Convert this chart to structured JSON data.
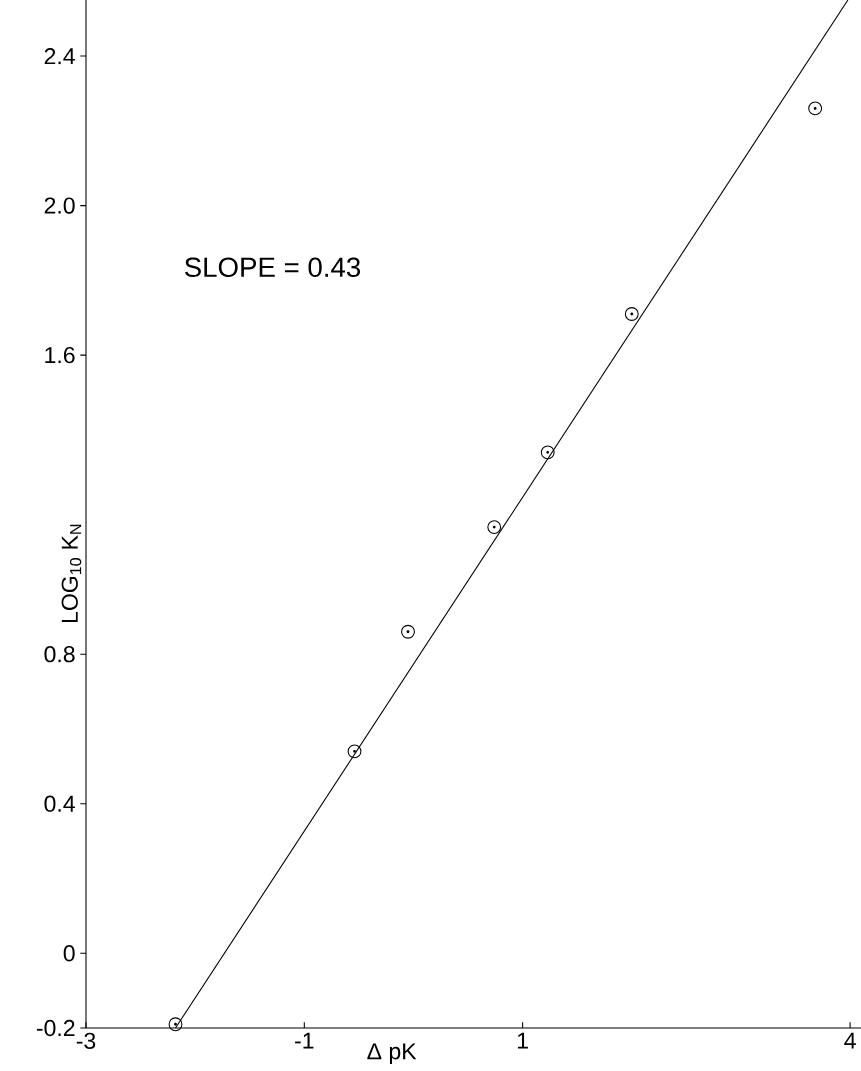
{
  "chart_data": {
    "type": "scatter",
    "xlabel": "Δ pK",
    "ylabel": "LOG$_{10}$ K$_{N}$",
    "annotations": [
      "SLOPE = 0.43"
    ],
    "xlim": [
      -3,
      4.1
    ],
    "ylim": [
      -0.2,
      2.55
    ],
    "xticks": [
      -3,
      -1,
      1,
      4
    ],
    "yticks": [
      -0.2,
      0,
      0.4,
      0.8,
      1.6,
      {
        "value": 2.0,
        "label": "2.0"
      },
      2.4
    ],
    "series": [
      {
        "color": "#000000",
        "marker": "circle",
        "x": [
          -2.18,
          -0.54,
          -0.05,
          0.74,
          1.23,
          2.0,
          3.68
        ],
        "values": [
          -0.19,
          0.54,
          0.86,
          1.14,
          1.34,
          1.71,
          2.26
        ]
      },
      {
        "type": "line",
        "color": "#000000",
        "line_style": "solid",
        "x": [
          -2.18,
          3.98
        ],
        "values": [
          -0.2,
          2.55
        ]
      }
    ]
  }
}
